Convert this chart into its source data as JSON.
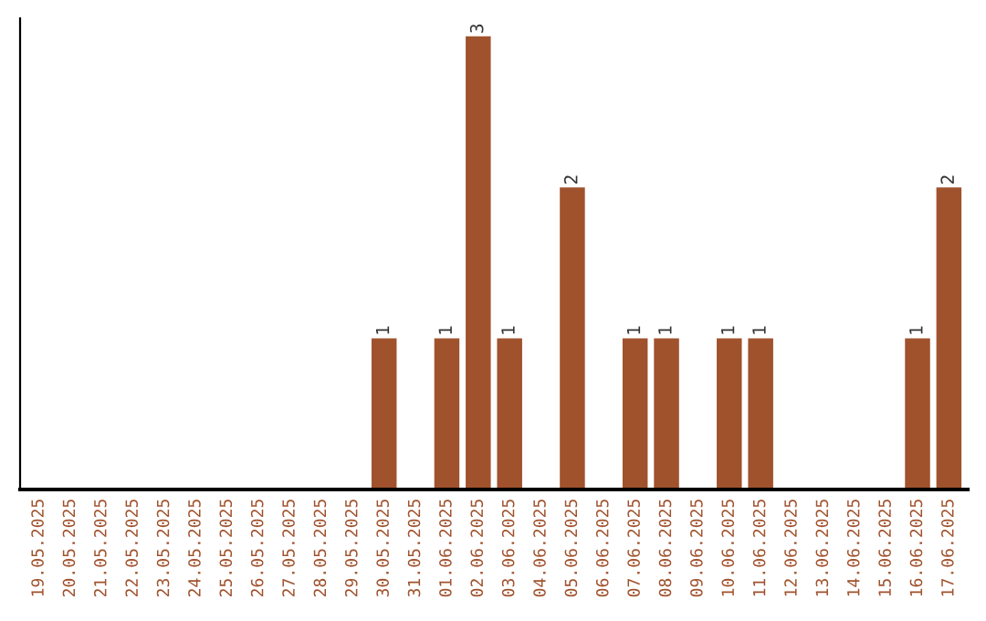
{
  "chart_data": {
    "type": "bar",
    "categories": [
      "19.05.2025",
      "20.05.2025",
      "21.05.2025",
      "22.05.2025",
      "23.05.2025",
      "24.05.2025",
      "25.05.2025",
      "26.05.2025",
      "27.05.2025",
      "28.05.2025",
      "29.05.2025",
      "30.05.2025",
      "31.05.2025",
      "01.06.2025",
      "02.06.2025",
      "03.06.2025",
      "04.06.2025",
      "05.06.2025",
      "06.06.2025",
      "07.06.2025",
      "08.06.2025",
      "09.06.2025",
      "10.06.2025",
      "11.06.2025",
      "12.06.2025",
      "13.06.2025",
      "14.06.2025",
      "15.06.2025",
      "16.06.2025",
      "17.06.2025"
    ],
    "values": [
      0,
      0,
      0,
      0,
      0,
      0,
      0,
      0,
      0,
      0,
      0,
      1,
      0,
      1,
      3,
      1,
      0,
      2,
      0,
      1,
      1,
      0,
      1,
      1,
      0,
      0,
      0,
      0,
      1,
      2
    ],
    "value_labels": [
      null,
      null,
      null,
      null,
      null,
      null,
      null,
      null,
      null,
      null,
      null,
      "1",
      null,
      "1",
      "3",
      "1",
      null,
      "2",
      null,
      "1",
      "1",
      null,
      "1",
      "1",
      null,
      null,
      null,
      null,
      "1",
      "2"
    ],
    "color": "#a0522d",
    "tick_labels": "x",
    "grid": false,
    "legend": false
  }
}
